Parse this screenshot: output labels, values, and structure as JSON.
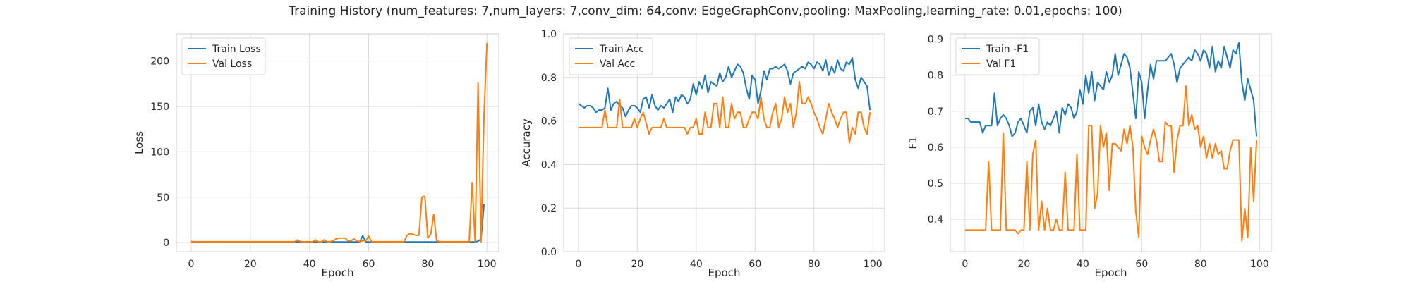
{
  "figure": {
    "title": "Training History (num_features: 7,num_layers: 7,conv_dim: 64,conv: EdgeGraphConv,pooling: MaxPooling,learning_rate: 0.01,epochs: 100)"
  },
  "colors": {
    "train": "#1f77b4",
    "val": "#ff7f0e",
    "grid": "#dadada",
    "axes_edge": "#cfcfcf",
    "background": "#ffffff"
  },
  "chart_data": [
    {
      "type": "line",
      "xlabel": "Epoch",
      "ylabel": "Loss",
      "xlim": [
        -5,
        104
      ],
      "ylim": [
        -10,
        230
      ],
      "xticks": [
        0,
        20,
        40,
        60,
        80,
        100
      ],
      "yticks": [
        0,
        50,
        100,
        150,
        200
      ],
      "ytick_labels": [
        "0",
        "50",
        "100",
        "150",
        "200"
      ],
      "grid": true,
      "legend_position": "upper-left",
      "series": [
        {
          "name": "Train Loss",
          "role": "train",
          "values": [
            1.2,
            0.9,
            0.8,
            0.9,
            0.8,
            0.8,
            0.7,
            0.8,
            0.8,
            0.7,
            0.8,
            0.7,
            0.7,
            0.8,
            0.7,
            0.7,
            0.8,
            0.7,
            0.7,
            0.7,
            0.7,
            0.7,
            0.7,
            0.7,
            0.7,
            0.7,
            0.7,
            0.7,
            0.7,
            0.7,
            0.7,
            0.7,
            0.7,
            0.7,
            0.7,
            0.7,
            0.8,
            0.7,
            0.7,
            0.7,
            0.7,
            0.7,
            0.7,
            0.7,
            0.7,
            0.7,
            0.7,
            0.7,
            0.7,
            0.7,
            0.7,
            0.7,
            0.7,
            0.7,
            0.7,
            0.7,
            0.7,
            0.8,
            7.5,
            0.9,
            0.7,
            0.7,
            0.7,
            0.7,
            0.7,
            0.7,
            0.7,
            0.7,
            0.7,
            0.7,
            0.7,
            0.7,
            0.7,
            0.7,
            0.7,
            0.7,
            0.7,
            0.7,
            0.7,
            0.7,
            0.7,
            0.7,
            0.7,
            0.7,
            0.7,
            0.7,
            0.7,
            0.7,
            0.7,
            0.7,
            0.7,
            0.7,
            0.7,
            0.7,
            0.7,
            0.7,
            0.8,
            1.5,
            4.0,
            42.0
          ]
        },
        {
          "name": "Val Loss",
          "role": "val",
          "values": [
            1.0,
            1.0,
            1.0,
            1.0,
            1.0,
            1.0,
            1.0,
            1.0,
            1.0,
            1.0,
            1.0,
            1.0,
            1.0,
            1.0,
            1.0,
            1.0,
            1.0,
            1.0,
            1.0,
            1.0,
            1.0,
            1.0,
            1.0,
            1.0,
            1.0,
            1.0,
            1.0,
            1.0,
            1.0,
            1.0,
            1.0,
            1.0,
            1.0,
            1.0,
            1.0,
            1.0,
            3.0,
            1.0,
            1.0,
            1.0,
            1.0,
            0.8,
            3.0,
            1.0,
            1.0,
            3.0,
            1.0,
            1.0,
            2.0,
            4.0,
            5.0,
            5.0,
            5.0,
            2.0,
            2.0,
            4.0,
            2.0,
            1.0,
            2.0,
            2.0,
            7.0,
            1.0,
            1.0,
            1.0,
            1.0,
            1.0,
            1.0,
            1.0,
            1.0,
            1.0,
            1.0,
            1.0,
            1.0,
            8.0,
            10.0,
            9.0,
            8.0,
            8.0,
            50.0,
            51.0,
            5.0,
            9.0,
            31.0,
            2.0,
            1.0,
            1.0,
            1.0,
            1.0,
            1.0,
            1.0,
            1.0,
            1.0,
            1.0,
            1.0,
            1.0,
            66.0,
            1.0,
            176.0,
            1.0,
            140.0,
            220.0
          ]
        }
      ]
    },
    {
      "type": "line",
      "xlabel": "Epoch",
      "ylabel": "Accuracy",
      "xlim": [
        -5,
        104
      ],
      "ylim": [
        0.0,
        1.0
      ],
      "xticks": [
        0,
        20,
        40,
        60,
        80,
        100
      ],
      "yticks": [
        0.0,
        0.2,
        0.4,
        0.6,
        0.8,
        1.0
      ],
      "ytick_labels": [
        "0.0",
        "0.2",
        "0.4",
        "0.6",
        "0.8",
        "1.0"
      ],
      "grid": true,
      "legend_position": "upper-left",
      "series": [
        {
          "name": "Train Acc",
          "role": "train",
          "values": [
            0.68,
            0.67,
            0.66,
            0.67,
            0.67,
            0.66,
            0.64,
            0.65,
            0.65,
            0.66,
            0.75,
            0.65,
            0.68,
            0.69,
            0.67,
            0.66,
            0.62,
            0.65,
            0.67,
            0.67,
            0.66,
            0.64,
            0.7,
            0.71,
            0.66,
            0.72,
            0.67,
            0.65,
            0.67,
            0.66,
            0.68,
            0.7,
            0.64,
            0.71,
            0.69,
            0.72,
            0.71,
            0.68,
            0.7,
            0.77,
            0.72,
            0.78,
            0.75,
            0.81,
            0.73,
            0.78,
            0.77,
            0.76,
            0.82,
            0.78,
            0.8,
            0.85,
            0.8,
            0.83,
            0.86,
            0.85,
            0.82,
            0.75,
            0.7,
            0.81,
            0.79,
            0.68,
            0.74,
            0.83,
            0.79,
            0.84,
            0.84,
            0.85,
            0.84,
            0.85,
            0.86,
            0.83,
            0.77,
            0.82,
            0.83,
            0.84,
            0.85,
            0.84,
            0.87,
            0.86,
            0.84,
            0.87,
            0.86,
            0.83,
            0.88,
            0.81,
            0.85,
            0.82,
            0.88,
            0.84,
            0.83,
            0.87,
            0.86,
            0.89,
            0.79,
            0.75,
            0.8,
            0.78,
            0.76,
            0.65
          ]
        },
        {
          "name": "Val Acc",
          "role": "val",
          "values": [
            0.57,
            0.57,
            0.57,
            0.57,
            0.57,
            0.57,
            0.57,
            0.57,
            0.57,
            0.65,
            0.57,
            0.57,
            0.57,
            0.57,
            0.7,
            0.57,
            0.57,
            0.57,
            0.57,
            0.61,
            0.57,
            0.61,
            0.64,
            0.59,
            0.54,
            0.57,
            0.57,
            0.57,
            0.57,
            0.61,
            0.57,
            0.57,
            0.57,
            0.57,
            0.57,
            0.57,
            0.57,
            0.54,
            0.57,
            0.57,
            0.61,
            0.54,
            0.54,
            0.64,
            0.57,
            0.57,
            0.68,
            0.68,
            0.57,
            0.71,
            0.57,
            0.57,
            0.68,
            0.61,
            0.64,
            0.64,
            0.57,
            0.57,
            0.61,
            0.64,
            0.64,
            0.61,
            0.71,
            0.61,
            0.57,
            0.57,
            0.64,
            0.68,
            0.57,
            0.61,
            0.71,
            0.64,
            0.68,
            0.57,
            0.64,
            0.78,
            0.68,
            0.68,
            0.71,
            0.68,
            0.64,
            0.61,
            0.57,
            0.54,
            0.61,
            0.68,
            0.64,
            0.61,
            0.57,
            0.61,
            0.64,
            0.64,
            0.5,
            0.57,
            0.54,
            0.64,
            0.64,
            0.57,
            0.54,
            0.64
          ]
        }
      ]
    },
    {
      "type": "line",
      "xlabel": "Epoch",
      "ylabel": "F1",
      "xlim": [
        -5,
        104
      ],
      "ylim": [
        0.31,
        0.915
      ],
      "xticks": [
        0,
        20,
        40,
        60,
        80,
        100
      ],
      "yticks": [
        0.4,
        0.5,
        0.6,
        0.7,
        0.8,
        0.9
      ],
      "ytick_labels": [
        "0.4",
        "0.5",
        "0.6",
        "0.7",
        "0.8",
        "0.9"
      ],
      "grid": true,
      "legend_position": "upper-left",
      "series": [
        {
          "name": "Train -F1",
          "role": "train",
          "values": [
            0.68,
            0.68,
            0.67,
            0.67,
            0.67,
            0.67,
            0.64,
            0.66,
            0.66,
            0.66,
            0.75,
            0.66,
            0.68,
            0.69,
            0.68,
            0.66,
            0.63,
            0.64,
            0.67,
            0.68,
            0.66,
            0.64,
            0.7,
            0.71,
            0.66,
            0.72,
            0.67,
            0.65,
            0.67,
            0.66,
            0.68,
            0.7,
            0.64,
            0.71,
            0.69,
            0.72,
            0.71,
            0.68,
            0.7,
            0.76,
            0.72,
            0.8,
            0.75,
            0.81,
            0.73,
            0.78,
            0.77,
            0.76,
            0.81,
            0.78,
            0.8,
            0.86,
            0.8,
            0.83,
            0.86,
            0.85,
            0.82,
            0.75,
            0.68,
            0.81,
            0.78,
            0.68,
            0.76,
            0.83,
            0.79,
            0.84,
            0.84,
            0.84,
            0.84,
            0.85,
            0.86,
            0.83,
            0.78,
            0.82,
            0.83,
            0.84,
            0.85,
            0.84,
            0.87,
            0.86,
            0.84,
            0.87,
            0.86,
            0.82,
            0.88,
            0.81,
            0.84,
            0.82,
            0.88,
            0.85,
            0.82,
            0.87,
            0.86,
            0.89,
            0.78,
            0.73,
            0.79,
            0.76,
            0.73,
            0.63
          ]
        },
        {
          "name": "Val F1",
          "role": "val",
          "values": [
            0.37,
            0.37,
            0.37,
            0.37,
            0.37,
            0.37,
            0.37,
            0.37,
            0.56,
            0.37,
            0.37,
            0.37,
            0.37,
            0.64,
            0.37,
            0.37,
            0.37,
            0.37,
            0.36,
            0.37,
            0.37,
            0.56,
            0.37,
            0.58,
            0.62,
            0.37,
            0.45,
            0.37,
            0.43,
            0.37,
            0.37,
            0.4,
            0.37,
            0.37,
            0.53,
            0.37,
            0.37,
            0.37,
            0.58,
            0.37,
            0.37,
            0.37,
            0.66,
            0.66,
            0.43,
            0.47,
            0.66,
            0.6,
            0.64,
            0.48,
            0.61,
            0.61,
            0.6,
            0.59,
            0.65,
            0.61,
            0.66,
            0.6,
            0.42,
            0.35,
            0.63,
            0.6,
            0.58,
            0.62,
            0.65,
            0.62,
            0.56,
            0.56,
            0.67,
            0.66,
            0.66,
            0.53,
            0.62,
            0.66,
            0.66,
            0.77,
            0.66,
            0.69,
            0.65,
            0.66,
            0.6,
            0.63,
            0.57,
            0.61,
            0.57,
            0.61,
            0.58,
            0.59,
            0.54,
            0.54,
            0.59,
            0.62,
            0.62,
            0.62,
            0.34,
            0.43,
            0.35,
            0.6,
            0.45,
            0.62
          ]
        }
      ]
    }
  ]
}
